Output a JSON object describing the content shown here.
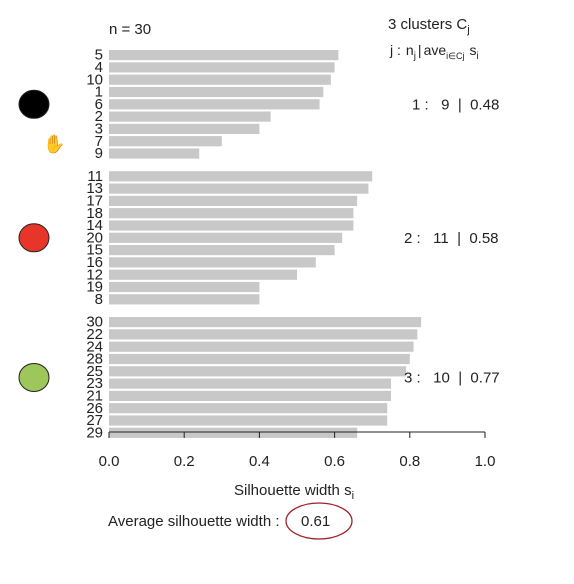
{
  "chart_data": {
    "type": "bar",
    "orientation": "horizontal",
    "n_label": "n = 30",
    "header_line1": "3  clusters  C",
    "header_line1_sub": "j",
    "header_line2": {
      "j": "j :",
      "n": "n",
      "n_sub": "j",
      "bar": "|",
      "ave": "ave",
      "ave_sub": "i∈Cj",
      "s": "s",
      "s_sub": "i"
    },
    "xlabel": "Silhouette width s",
    "xlabel_sub": "i",
    "xlim": [
      0,
      1
    ],
    "xticks": [
      "0.0",
      "0.2",
      "0.4",
      "0.6",
      "0.8",
      "1.0"
    ],
    "bar_color": "#c8c8c8",
    "clusters": [
      {
        "summary": "1 :   9  |  0.48",
        "color": "#000000",
        "items": [
          {
            "label": "5",
            "value": 0.61
          },
          {
            "label": "4",
            "value": 0.6
          },
          {
            "label": "10",
            "value": 0.59
          },
          {
            "label": "1",
            "value": 0.57
          },
          {
            "label": "6",
            "value": 0.56
          },
          {
            "label": "2",
            "value": 0.43
          },
          {
            "label": "3",
            "value": 0.4
          },
          {
            "label": "7",
            "value": 0.3
          },
          {
            "label": "9",
            "value": 0.24
          }
        ]
      },
      {
        "summary": "2 :   11  |  0.58",
        "color": "#e8352a",
        "items": [
          {
            "label": "11",
            "value": 0.7
          },
          {
            "label": "13",
            "value": 0.69
          },
          {
            "label": "17",
            "value": 0.66
          },
          {
            "label": "18",
            "value": 0.65
          },
          {
            "label": "14",
            "value": 0.65
          },
          {
            "label": "20",
            "value": 0.62
          },
          {
            "label": "15",
            "value": 0.6
          },
          {
            "label": "16",
            "value": 0.55
          },
          {
            "label": "12",
            "value": 0.5
          },
          {
            "label": "19",
            "value": 0.4
          },
          {
            "label": "8",
            "value": 0.4
          }
        ]
      },
      {
        "summary": "3 :   10  |  0.77",
        "color": "#9dc65b",
        "items": [
          {
            "label": "30",
            "value": 0.83
          },
          {
            "label": "22",
            "value": 0.82
          },
          {
            "label": "24",
            "value": 0.81
          },
          {
            "label": "28",
            "value": 0.8
          },
          {
            "label": "25",
            "value": 0.79
          },
          {
            "label": "23",
            "value": 0.75
          },
          {
            "label": "21",
            "value": 0.75
          },
          {
            "label": "26",
            "value": 0.74
          },
          {
            "label": "27",
            "value": 0.74
          },
          {
            "label": "29",
            "value": 0.66
          }
        ]
      }
    ],
    "avg_label": "Average silhouette width :",
    "avg_value": "0.61",
    "avg_circle_color": "#a0212a"
  }
}
